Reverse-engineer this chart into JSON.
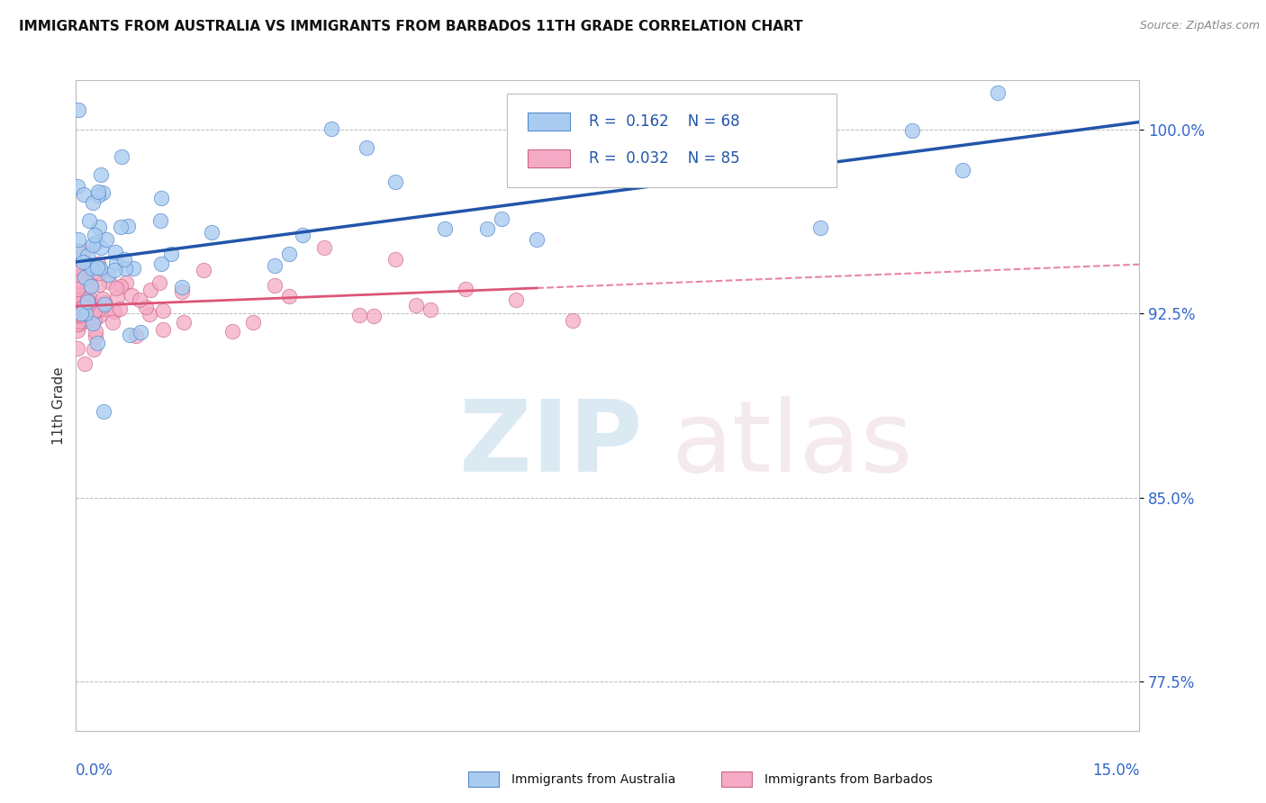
{
  "title": "IMMIGRANTS FROM AUSTRALIA VS IMMIGRANTS FROM BARBADOS 11TH GRADE CORRELATION CHART",
  "source": "Source: ZipAtlas.com",
  "ylabel": "11th Grade",
  "xlim": [
    0.0,
    15.0
  ],
  "ylim": [
    75.5,
    102.0
  ],
  "yticks": [
    77.5,
    85.0,
    92.5,
    100.0
  ],
  "ytick_labels": [
    "77.5%",
    "85.0%",
    "92.5%",
    "100.0%"
  ],
  "australia_color": "#aaccf0",
  "barbados_color": "#f5aac5",
  "australia_edge_color": "#5588cc",
  "barbados_edge_color": "#cc6688",
  "trendline_australia_color": "#2255aa",
  "trendline_barbados_color": "#dd5577",
  "australia_label": "Immigrants from Australia",
  "barbados_label": "Immigrants from Barbados",
  "legend_r1": "0.162",
  "legend_n1": "68",
  "legend_r2": "0.032",
  "legend_n2": "85",
  "aus_trendline_x": [
    0,
    15
  ],
  "aus_trendline_y": [
    94.6,
    100.3
  ],
  "bar_trendline_x": [
    0,
    15
  ],
  "bar_trendline_y": [
    92.8,
    94.5
  ],
  "bar_trendline_solid_end_x": 6.5
}
